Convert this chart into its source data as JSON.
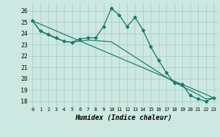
{
  "xlabel": "Humidex (Indice chaleur)",
  "background_color": "#cce8e0",
  "grid_color": "#aacccc",
  "line_color": "#1a7a6a",
  "xlim": [
    -0.5,
    23.5
  ],
  "ylim": [
    17.5,
    26.7
  ],
  "yticks": [
    18,
    19,
    20,
    21,
    22,
    23,
    24,
    25,
    26
  ],
  "xticks": [
    0,
    1,
    2,
    3,
    4,
    5,
    6,
    7,
    8,
    9,
    10,
    11,
    12,
    13,
    14,
    15,
    16,
    17,
    18,
    19,
    20,
    21,
    22,
    23
  ],
  "line1_x": [
    0,
    1,
    2,
    3,
    4,
    5,
    6,
    7,
    8,
    9,
    10,
    11,
    12,
    13,
    14,
    15,
    16,
    17,
    18,
    19,
    20,
    21,
    22,
    23
  ],
  "line1_y": [
    25.1,
    24.2,
    23.9,
    23.6,
    23.3,
    23.2,
    23.5,
    23.6,
    23.6,
    24.6,
    26.2,
    25.6,
    24.6,
    25.4,
    24.3,
    22.8,
    21.6,
    20.5,
    19.6,
    19.5,
    18.5,
    18.2,
    18.0,
    18.3
  ],
  "line2_x": [
    0,
    1,
    2,
    3,
    4,
    5,
    6,
    7,
    8,
    9,
    10,
    11,
    12,
    13,
    14,
    15,
    16,
    17,
    18,
    19,
    20,
    21,
    22,
    23
  ],
  "line2_y": [
    25.1,
    24.2,
    23.85,
    23.55,
    23.3,
    23.2,
    23.3,
    23.4,
    23.35,
    23.3,
    23.25,
    22.8,
    22.35,
    21.9,
    21.45,
    21.0,
    20.55,
    20.1,
    19.65,
    19.3,
    18.95,
    18.6,
    18.2,
    18.3
  ],
  "line3_x": [
    0,
    23
  ],
  "line3_y": [
    25.1,
    18.3
  ]
}
